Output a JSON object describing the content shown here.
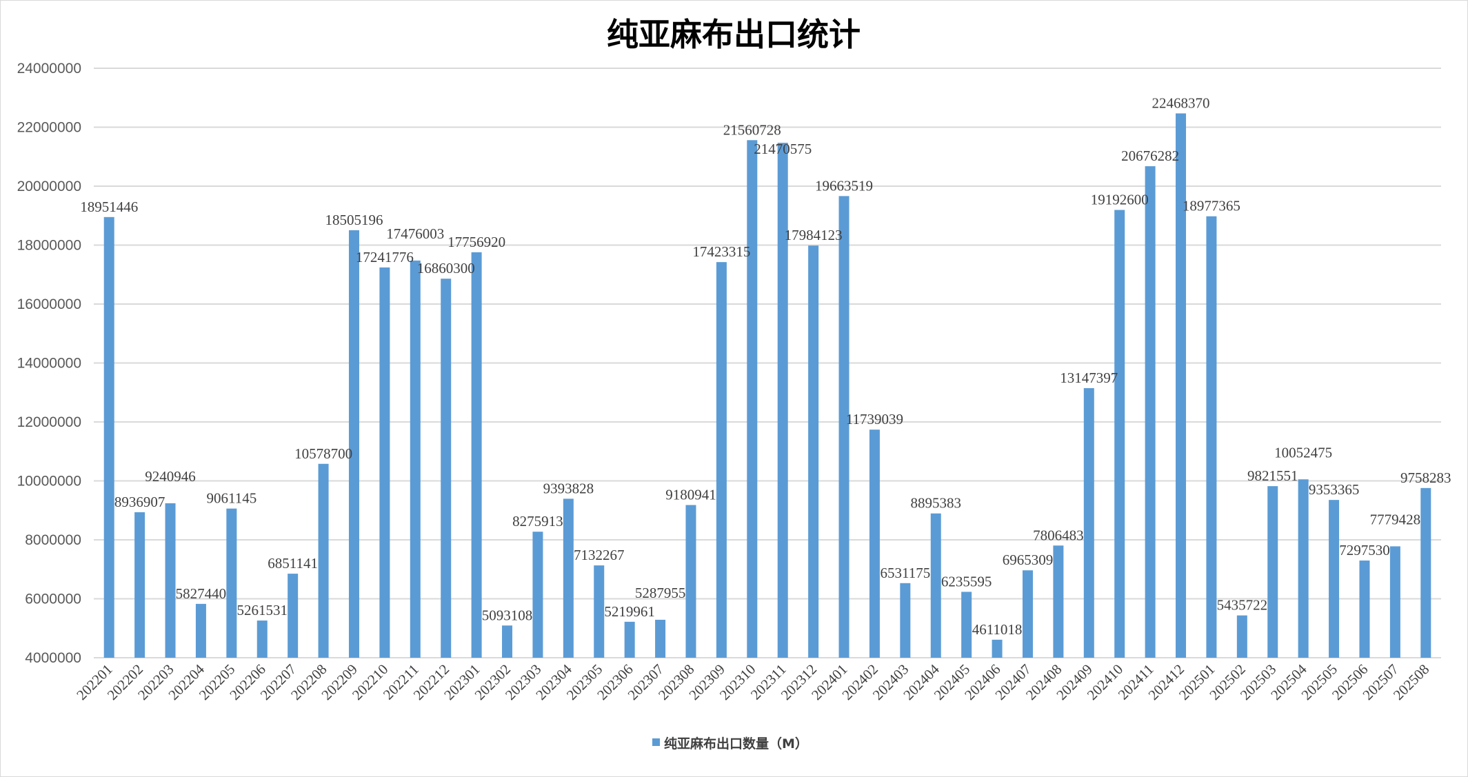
{
  "chart_data": {
    "type": "bar",
    "title": "纯亚麻布出口统计",
    "xlabel": "",
    "ylabel": "",
    "ylim": [
      4000000,
      24000000
    ],
    "yticks": [
      4000000,
      6000000,
      8000000,
      10000000,
      12000000,
      14000000,
      16000000,
      18000000,
      20000000,
      22000000,
      24000000
    ],
    "grid": true,
    "legend_position": "bottom",
    "bar_color": "#5b9bd5",
    "categories": [
      "202201",
      "202202",
      "202203",
      "202204",
      "202205",
      "202206",
      "202207",
      "202208",
      "202209",
      "202210",
      "202211",
      "202212",
      "202301",
      "202302",
      "202303",
      "202304",
      "202305",
      "202306",
      "202307",
      "202308",
      "202309",
      "202310",
      "202311",
      "202312",
      "202401",
      "202402",
      "202403",
      "202404",
      "202405",
      "202406",
      "202407",
      "202408",
      "202409",
      "202410",
      "202411",
      "202412",
      "202501",
      "202502",
      "202503",
      "202504",
      "202505",
      "202506",
      "202507",
      "202508"
    ],
    "series": [
      {
        "name": "纯亚麻布出口数量（M）",
        "values": [
          18951446,
          8936907,
          9240946,
          5827440,
          9061145,
          5261531,
          6851141,
          10578700,
          18505196,
          17241776,
          17476003,
          16860300,
          17756920,
          5093108,
          8275913,
          9393828,
          7132267,
          5219961,
          5287955,
          9180941,
          17423315,
          21560728,
          21470575,
          17984123,
          19663519,
          11739039,
          6531175,
          8895383,
          6235595,
          4611018,
          6965309,
          7806483,
          13147397,
          19192600,
          20676282,
          22468370,
          18977365,
          5435722,
          9821551,
          10052475,
          9353365,
          7297530,
          7779428,
          9758283
        ]
      }
    ]
  }
}
